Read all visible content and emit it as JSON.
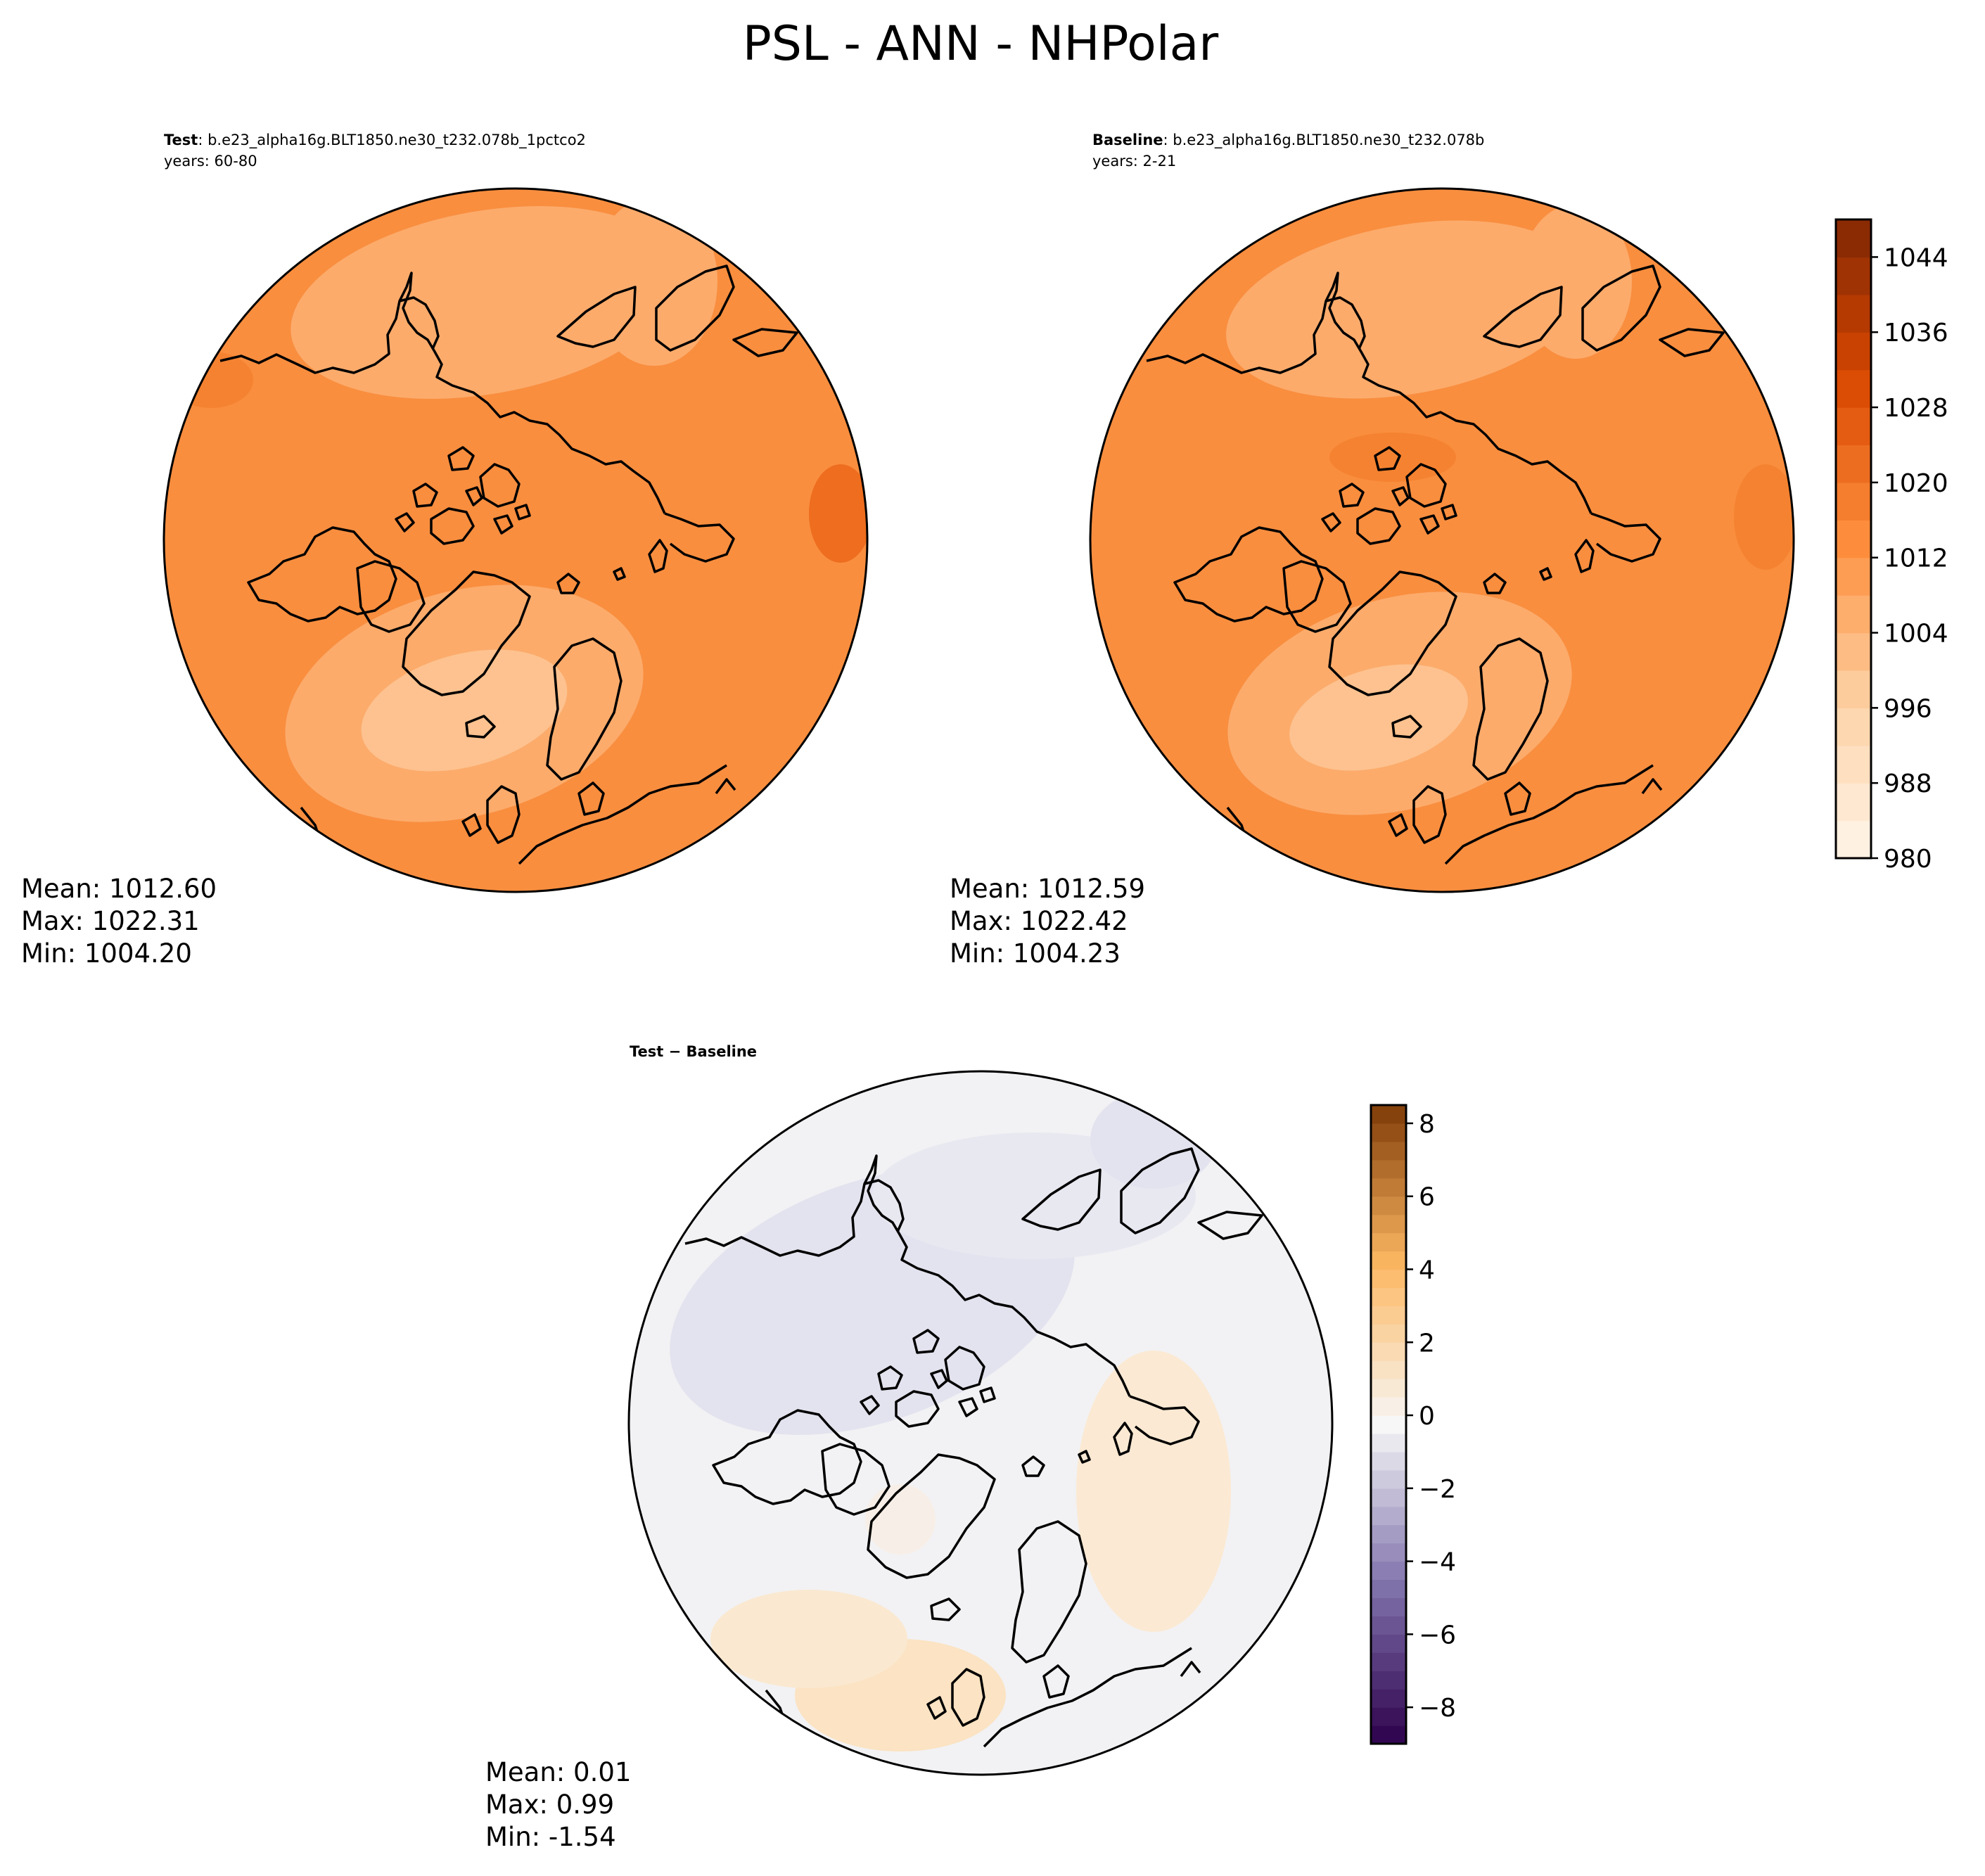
{
  "figure": {
    "title": "PSL - ANN - NHPolar"
  },
  "panels": {
    "test": {
      "label": "Test",
      "case": ": b.e23_alpha16g.BLT1850.ne30_t232.078b_1pctco2",
      "years": "years: 60-80",
      "stats": {
        "mean": "Mean: 1012.60",
        "max": "Max: 1022.31",
        "min": "Min: 1004.20"
      }
    },
    "baseline": {
      "label": "Baseline",
      "case": ": b.e23_alpha16g.BLT1850.ne30_t232.078b",
      "years": "years: 2-21",
      "stats": {
        "mean": "Mean: 1012.59",
        "max": "Max: 1022.42",
        "min": "Min: 1004.23"
      }
    },
    "diff": {
      "label": "Test − Baseline",
      "stats": {
        "mean": "Mean:  0.01",
        "max": "Max:  0.99",
        "min": "Min: -1.54"
      }
    }
  },
  "colors": {
    "field_main": "#f98e3f",
    "field_light": "#fcab6b",
    "field_lighter": "#fdc28f",
    "field_dark": "#ee6d1e",
    "diff_neutral": "#f2f2f4",
    "diff_neg": "#e3e3ef",
    "diff_pos": "#fbe3c3",
    "coast": "#000000"
  },
  "chart_data": [
    {
      "type": "heatmap",
      "panel": "test",
      "projection": "north polar stereographic",
      "colormap": "Oranges",
      "colorbar_range": [
        980,
        1048
      ],
      "colorbar_ticks": [
        980,
        988,
        996,
        1004,
        1012,
        1020,
        1028,
        1036,
        1044
      ],
      "mean": 1012.6,
      "max": 1022.31,
      "min": 1004.2
    },
    {
      "type": "heatmap",
      "panel": "baseline",
      "projection": "north polar stereographic",
      "colormap": "Oranges",
      "colorbar_range": [
        980,
        1048
      ],
      "colorbar_ticks": [
        980,
        988,
        996,
        1004,
        1012,
        1020,
        1028,
        1036,
        1044
      ],
      "mean": 1012.59,
      "max": 1022.42,
      "min": 1004.23
    },
    {
      "type": "heatmap",
      "panel": "diff",
      "projection": "north polar stereographic",
      "colormap": "PuOr_r",
      "colorbar_range": [
        -9,
        8.5
      ],
      "colorbar_ticks": [
        -8,
        -6,
        -4,
        -2,
        0,
        2,
        4,
        6,
        8
      ],
      "colorbar_tick_labels": [
        "−8",
        "−6",
        "−4",
        "−2",
        "0",
        "2",
        "4",
        "6",
        "8"
      ],
      "mean": 0.01,
      "max": 0.99,
      "min": -1.54
    }
  ]
}
